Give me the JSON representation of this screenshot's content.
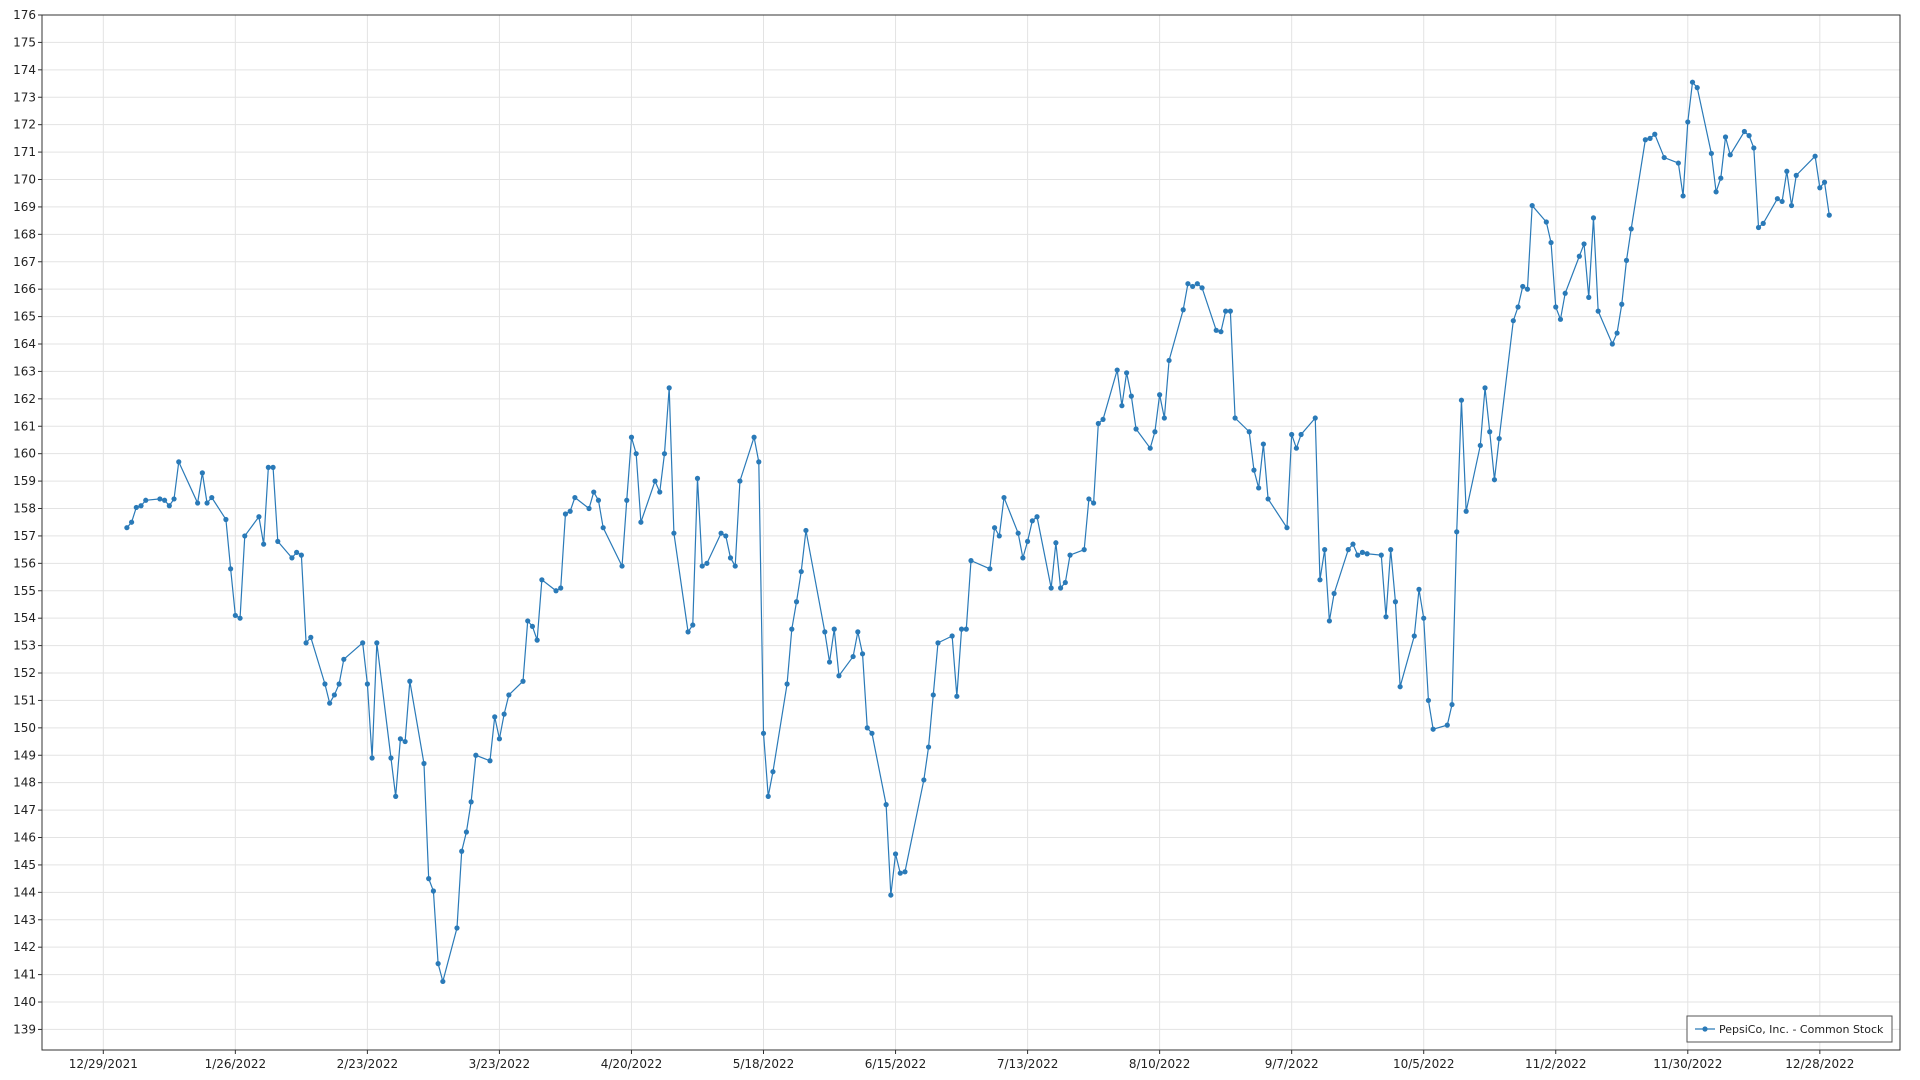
{
  "chart_data": {
    "type": "line",
    "grid": true,
    "legend": "lower right",
    "x": [
      "1/3/2022",
      "1/4/2022",
      "1/5/2022",
      "1/6/2022",
      "1/7/2022",
      "1/10/2022",
      "1/11/2022",
      "1/12/2022",
      "1/13/2022",
      "1/14/2022",
      "1/18/2022",
      "1/19/2022",
      "1/20/2022",
      "1/21/2022",
      "1/24/2022",
      "1/25/2022",
      "1/26/2022",
      "1/27/2022",
      "1/28/2022",
      "1/31/2022",
      "2/1/2022",
      "2/2/2022",
      "2/3/2022",
      "2/4/2022",
      "2/7/2022",
      "2/8/2022",
      "2/9/2022",
      "2/10/2022",
      "2/11/2022",
      "2/14/2022",
      "2/15/2022",
      "2/16/2022",
      "2/17/2022",
      "2/18/2022",
      "2/22/2022",
      "2/23/2022",
      "2/24/2022",
      "2/25/2022",
      "2/28/2022",
      "3/1/2022",
      "3/2/2022",
      "3/3/2022",
      "3/4/2022",
      "3/7/2022",
      "3/8/2022",
      "3/9/2022",
      "3/10/2022",
      "3/11/2022",
      "3/14/2022",
      "3/15/2022",
      "3/16/2022",
      "3/17/2022",
      "3/18/2022",
      "3/21/2022",
      "3/22/2022",
      "3/23/2022",
      "3/24/2022",
      "3/25/2022",
      "3/28/2022",
      "3/29/2022",
      "3/30/2022",
      "3/31/2022",
      "4/1/2022",
      "4/4/2022",
      "4/5/2022",
      "4/6/2022",
      "4/7/2022",
      "4/8/2022",
      "4/11/2022",
      "4/12/2022",
      "4/13/2022",
      "4/14/2022",
      "4/18/2022",
      "4/19/2022",
      "4/20/2022",
      "4/21/2022",
      "4/22/2022",
      "4/25/2022",
      "4/26/2022",
      "4/27/2022",
      "4/28/2022",
      "4/29/2022",
      "5/2/2022",
      "5/3/2022",
      "5/4/2022",
      "5/5/2022",
      "5/6/2022",
      "5/9/2022",
      "5/10/2022",
      "5/11/2022",
      "5/12/2022",
      "5/13/2022",
      "5/16/2022",
      "5/17/2022",
      "5/18/2022",
      "5/19/2022",
      "5/20/2022",
      "5/23/2022",
      "5/24/2022",
      "5/25/2022",
      "5/26/2022",
      "5/27/2022",
      "5/31/2022",
      "6/1/2022",
      "6/2/2022",
      "6/3/2022",
      "6/6/2022",
      "6/7/2022",
      "6/8/2022",
      "6/9/2022",
      "6/10/2022",
      "6/13/2022",
      "6/14/2022",
      "6/15/2022",
      "6/16/2022",
      "6/17/2022",
      "6/21/2022",
      "6/22/2022",
      "6/23/2022",
      "6/24/2022",
      "6/27/2022",
      "6/28/2022",
      "6/29/2022",
      "6/30/2022",
      "7/1/2022",
      "7/5/2022",
      "7/6/2022",
      "7/7/2022",
      "7/8/2022",
      "7/11/2022",
      "7/12/2022",
      "7/13/2022",
      "7/14/2022",
      "7/15/2022",
      "7/18/2022",
      "7/19/2022",
      "7/20/2022",
      "7/21/2022",
      "7/22/2022",
      "7/25/2022",
      "7/26/2022",
      "7/27/2022",
      "7/28/2022",
      "7/29/2022",
      "8/1/2022",
      "8/2/2022",
      "8/3/2022",
      "8/4/2022",
      "8/5/2022",
      "8/8/2022",
      "8/9/2022",
      "8/10/2022",
      "8/11/2022",
      "8/12/2022",
      "8/15/2022",
      "8/16/2022",
      "8/17/2022",
      "8/18/2022",
      "8/19/2022",
      "8/22/2022",
      "8/23/2022",
      "8/24/2022",
      "8/25/2022",
      "8/26/2022",
      "8/29/2022",
      "8/30/2022",
      "8/31/2022",
      "9/1/2022",
      "9/2/2022",
      "9/6/2022",
      "9/7/2022",
      "9/8/2022",
      "9/9/2022",
      "9/12/2022",
      "9/13/2022",
      "9/14/2022",
      "9/15/2022",
      "9/16/2022",
      "9/19/2022",
      "9/20/2022",
      "9/21/2022",
      "9/22/2022",
      "9/23/2022",
      "9/26/2022",
      "9/27/2022",
      "9/28/2022",
      "9/29/2022",
      "9/30/2022",
      "10/3/2022",
      "10/4/2022",
      "10/5/2022",
      "10/6/2022",
      "10/7/2022",
      "10/10/2022",
      "10/11/2022",
      "10/12/2022",
      "10/13/2022",
      "10/14/2022",
      "10/17/2022",
      "10/18/2022",
      "10/19/2022",
      "10/20/2022",
      "10/21/2022",
      "10/24/2022",
      "10/25/2022",
      "10/26/2022",
      "10/27/2022",
      "10/28/2022",
      "10/31/2022",
      "11/1/2022",
      "11/2/2022",
      "11/3/2022",
      "11/4/2022",
      "11/7/2022",
      "11/8/2022",
      "11/9/2022",
      "11/10/2022",
      "11/11/2022",
      "11/14/2022",
      "11/15/2022",
      "11/16/2022",
      "11/17/2022",
      "11/18/2022",
      "11/21/2022",
      "11/22/2022",
      "11/23/2022",
      "11/25/2022",
      "11/28/2022",
      "11/29/2022",
      "11/30/2022",
      "12/1/2022",
      "12/2/2022",
      "12/5/2022",
      "12/6/2022",
      "12/7/2022",
      "12/8/2022",
      "12/9/2022",
      "12/12/2022",
      "12/13/2022",
      "12/14/2022",
      "12/15/2022",
      "12/16/2022",
      "12/19/2022",
      "12/20/2022",
      "12/21/2022",
      "12/22/2022",
      "12/23/2022",
      "12/27/2022",
      "12/28/2022",
      "12/29/2022",
      "12/30/2022"
    ],
    "series": [
      {
        "name": "PepsiCo, Inc. - Common Stock",
        "color": "#2a7ab8",
        "values": [
          157.3,
          157.5,
          158.04,
          158.1,
          158.3,
          158.35,
          158.3,
          158.1,
          158.35,
          159.7,
          158.2,
          159.3,
          158.2,
          158.4,
          157.6,
          155.8,
          154.1,
          154.0,
          157.0,
          157.7,
          156.7,
          159.5,
          159.5,
          156.8,
          156.2,
          156.4,
          156.3,
          153.1,
          153.3,
          151.6,
          150.9,
          151.2,
          151.6,
          152.5,
          153.1,
          151.6,
          148.9,
          153.1,
          148.9,
          147.5,
          149.6,
          149.5,
          151.7,
          148.7,
          144.5,
          144.05,
          141.4,
          140.75,
          142.7,
          145.5,
          146.2,
          147.3,
          149.0,
          148.8,
          150.4,
          149.6,
          150.5,
          151.2,
          151.7,
          153.9,
          153.7,
          153.2,
          155.4,
          155.0,
          155.1,
          157.8,
          157.9,
          158.4,
          158.0,
          158.6,
          158.3,
          157.3,
          155.9,
          158.3,
          160.6,
          160.0,
          157.5,
          159.0,
          158.6,
          160.0,
          162.4,
          157.1,
          153.5,
          153.75,
          159.1,
          155.9,
          156.0,
          157.1,
          157.0,
          156.2,
          155.9,
          159.0,
          160.6,
          159.7,
          149.8,
          147.5,
          148.4,
          151.6,
          153.6,
          154.6,
          155.7,
          157.2,
          153.5,
          152.4,
          153.6,
          151.9,
          152.6,
          153.5,
          152.7,
          150.0,
          149.8,
          147.2,
          143.9,
          145.4,
          144.7,
          144.75,
          148.1,
          149.3,
          151.2,
          153.1,
          153.35,
          151.15,
          153.6,
          153.6,
          156.1,
          155.8,
          157.3,
          157.0,
          158.4,
          157.1,
          156.2,
          156.8,
          157.55,
          157.7,
          155.1,
          156.75,
          155.1,
          155.3,
          156.3,
          156.5,
          158.35,
          158.2,
          161.1,
          161.25,
          163.05,
          161.75,
          162.95,
          162.1,
          160.9,
          160.2,
          160.8,
          162.15,
          161.3,
          163.4,
          165.25,
          166.2,
          166.1,
          166.2,
          166.05,
          164.5,
          164.45,
          165.2,
          165.2,
          161.3,
          160.8,
          159.4,
          158.75,
          160.35,
          158.35,
          157.3,
          160.7,
          160.2,
          160.7,
          161.3,
          155.4,
          156.5,
          153.9,
          154.9,
          156.5,
          156.7,
          156.3,
          156.4,
          156.35,
          156.3,
          154.05,
          156.5,
          154.6,
          151.5,
          153.35,
          155.05,
          154.0,
          151.0,
          149.95,
          150.1,
          150.85,
          157.15,
          161.95,
          157.9,
          160.3,
          162.4,
          160.8,
          159.05,
          160.55,
          164.85,
          165.35,
          166.1,
          166.0,
          169.05,
          168.45,
          167.7,
          165.35,
          164.9,
          165.85,
          167.2,
          167.65,
          165.7,
          168.6,
          165.2,
          164.0,
          164.4,
          165.45,
          167.05,
          168.2,
          171.45,
          171.5,
          171.65,
          170.8,
          170.6,
          169.4,
          172.1,
          173.55,
          173.35,
          170.95,
          169.55,
          170.05,
          171.55,
          170.9,
          171.75,
          171.6,
          171.15,
          168.25,
          168.4,
          169.3,
          169.2,
          170.3,
          169.05,
          170.15,
          170.85,
          169.7,
          169.9,
          168.7
        ]
      }
    ],
    "xlim": [
      "12/16/2021",
      "1/14/2023"
    ],
    "xticks": [
      "12/29/2021",
      "1/26/2022",
      "2/23/2022",
      "3/23/2022",
      "4/20/2022",
      "5/18/2022",
      "6/15/2022",
      "7/13/2022",
      "8/10/2022",
      "9/7/2022",
      "10/5/2022",
      "11/2/2022",
      "11/30/2022",
      "12/28/2022"
    ],
    "ylim": [
      138.25,
      176
    ],
    "yticks": [
      139,
      140,
      141,
      142,
      143,
      144,
      145,
      146,
      147,
      148,
      149,
      150,
      151,
      152,
      153,
      154,
      155,
      156,
      157,
      158,
      159,
      160,
      161,
      162,
      163,
      164,
      165,
      166,
      167,
      168,
      169,
      170,
      171,
      172,
      173,
      174,
      175,
      176
    ]
  }
}
